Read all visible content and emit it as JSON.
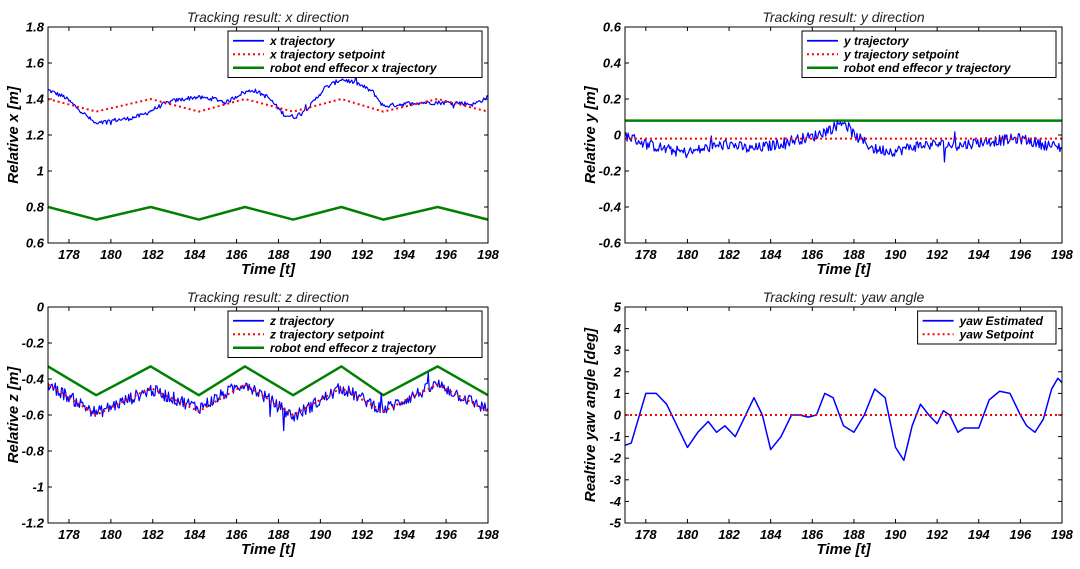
{
  "chart_data": [
    {
      "type": "line",
      "title": "Tracking result: x direction",
      "xlabel": "Time [t]",
      "ylabel": "Relative x [m]",
      "xlim": [
        177,
        198
      ],
      "ylim": [
        0.6,
        1.8
      ],
      "xticks": [
        178,
        180,
        182,
        184,
        186,
        188,
        190,
        192,
        194,
        196,
        198
      ],
      "yticks": [
        0.6,
        0.8,
        1,
        1.2,
        1.4,
        1.6,
        1.8
      ],
      "legend": "top-right",
      "series": [
        {
          "name": "x trajectory",
          "color": "#0000ff",
          "style": "solid",
          "noise": 0.012,
          "x": [
            177,
            177.8,
            178.6,
            179.3,
            180,
            180.8,
            181.5,
            182.5,
            183,
            184,
            185,
            185.5,
            186.2,
            186.8,
            187.5,
            188.3,
            188.8,
            189.5,
            190.2,
            191,
            191.7,
            192.5,
            193,
            193.8,
            194.5,
            195.5,
            196.5,
            197.3,
            198
          ],
          "y": [
            1.45,
            1.41,
            1.33,
            1.26,
            1.28,
            1.29,
            1.31,
            1.37,
            1.39,
            1.41,
            1.4,
            1.38,
            1.43,
            1.45,
            1.41,
            1.31,
            1.3,
            1.36,
            1.46,
            1.51,
            1.49,
            1.44,
            1.36,
            1.37,
            1.38,
            1.38,
            1.38,
            1.37,
            1.41
          ]
        },
        {
          "name": "x trajectory setpoint",
          "color": "#ff0000",
          "style": "dotted",
          "x": [
            177,
            179.3,
            181.9,
            184.2,
            186.4,
            188.7,
            191.0,
            193.0,
            195.6,
            198
          ],
          "y": [
            1.4,
            1.33,
            1.4,
            1.33,
            1.4,
            1.33,
            1.4,
            1.33,
            1.4,
            1.33
          ]
        },
        {
          "name": "robot end effecor x trajectory",
          "color": "#008000",
          "style": "solid",
          "x": [
            177,
            179.3,
            181.9,
            184.2,
            186.4,
            188.7,
            191.0,
            193.0,
            195.6,
            198
          ],
          "y": [
            0.8,
            0.73,
            0.8,
            0.73,
            0.8,
            0.73,
            0.8,
            0.73,
            0.8,
            0.73
          ]
        }
      ]
    },
    {
      "type": "line",
      "title": "Tracking result: y direction",
      "xlabel": "Time [t]",
      "ylabel": "Relative y [m]",
      "xlim": [
        177,
        198
      ],
      "ylim": [
        -0.6,
        0.6
      ],
      "xticks": [
        178,
        180,
        182,
        184,
        186,
        188,
        190,
        192,
        194,
        196,
        198
      ],
      "yticks": [
        -0.6,
        -0.4,
        -0.2,
        0,
        0.2,
        0.4,
        0.6
      ],
      "legend": "top-right",
      "series": [
        {
          "name": "y trajectory",
          "color": "#0000ff",
          "style": "solid",
          "noise": 0.03,
          "x": [
            177,
            178,
            179,
            180,
            181,
            182,
            183,
            184,
            185,
            186,
            187,
            187.5,
            188,
            189,
            190,
            191,
            192,
            193,
            194,
            195,
            196,
            197,
            198
          ],
          "y": [
            0.0,
            -0.05,
            -0.08,
            -0.1,
            -0.07,
            -0.05,
            -0.08,
            -0.06,
            -0.03,
            -0.01,
            0.04,
            0.08,
            0.0,
            -0.08,
            -0.09,
            -0.06,
            -0.05,
            -0.06,
            -0.04,
            -0.03,
            -0.02,
            -0.05,
            -0.07
          ]
        },
        {
          "name": "y trajectory setpoint",
          "color": "#ff0000",
          "style": "dotted",
          "x": [
            177,
            198
          ],
          "y": [
            -0.02,
            -0.02
          ]
        },
        {
          "name": "robot end effecor y trajectory",
          "color": "#008000",
          "style": "solid",
          "x": [
            177,
            198
          ],
          "y": [
            0.08,
            0.08
          ]
        }
      ]
    },
    {
      "type": "line",
      "title": "Tracking result: z direction",
      "xlabel": "Time [t]",
      "ylabel": "Relative z [m]",
      "xlim": [
        177,
        198
      ],
      "ylim": [
        -1.2,
        0
      ],
      "xticks": [
        178,
        180,
        182,
        184,
        186,
        188,
        190,
        192,
        194,
        196,
        198
      ],
      "yticks": [
        -1.2,
        -1,
        -0.8,
        -0.6,
        -0.4,
        -0.2,
        0
      ],
      "legend": "top-right",
      "series": [
        {
          "name": "z trajectory",
          "color": "#0000ff",
          "style": "solid",
          "noise": 0.035,
          "x": [
            177,
            179.3,
            181.9,
            184.2,
            186.4,
            188.7,
            191.0,
            193.0,
            195.6,
            198
          ],
          "y": [
            -0.43,
            -0.59,
            -0.46,
            -0.56,
            -0.42,
            -0.61,
            -0.45,
            -0.57,
            -0.43,
            -0.57
          ]
        },
        {
          "name": "z trajectory setpoint",
          "color": "#ff0000",
          "style": "dotted",
          "x": [
            177,
            179.3,
            181.9,
            184.2,
            186.4,
            188.7,
            191.0,
            193.0,
            195.6,
            198
          ],
          "y": [
            -0.43,
            -0.6,
            -0.45,
            -0.58,
            -0.43,
            -0.6,
            -0.45,
            -0.58,
            -0.43,
            -0.58
          ]
        },
        {
          "name": "robot end effecor z trajectory",
          "color": "#008000",
          "style": "solid",
          "x": [
            177,
            179.3,
            181.9,
            184.2,
            186.4,
            188.7,
            191.0,
            193.0,
            195.6,
            198
          ],
          "y": [
            -0.33,
            -0.49,
            -0.33,
            -0.49,
            -0.33,
            -0.49,
            -0.33,
            -0.49,
            -0.33,
            -0.49
          ]
        }
      ]
    },
    {
      "type": "line",
      "title": "Tracking result: yaw angle",
      "xlabel": "Time [t]",
      "ylabel": "Realtive yaw angle [deg]",
      "xlim": [
        177,
        198
      ],
      "ylim": [
        -5,
        5
      ],
      "xticks": [
        178,
        180,
        182,
        184,
        186,
        188,
        190,
        192,
        194,
        196,
        198
      ],
      "yticks": [
        -5,
        -4,
        -3,
        -2,
        -1,
        0,
        1,
        2,
        3,
        4,
        5
      ],
      "legend": "top-right",
      "series": [
        {
          "name": "yaw Estimated",
          "color": "#0000ff",
          "style": "solid",
          "x": [
            177,
            177.3,
            178,
            178.5,
            179,
            179.5,
            180,
            180.5,
            181,
            181.4,
            181.8,
            182.3,
            182.8,
            183.2,
            183.6,
            184,
            184.5,
            185,
            185.4,
            185.8,
            186.2,
            186.6,
            187,
            187.5,
            188,
            188.5,
            189,
            189.5,
            190,
            190.4,
            190.8,
            191.2,
            191.6,
            192,
            192.3,
            192.6,
            193,
            193.3,
            193.6,
            194,
            194.5,
            195,
            195.5,
            196,
            196.3,
            196.7,
            197.1,
            197.5,
            197.8,
            198
          ],
          "y": [
            -1.4,
            -1.3,
            1.0,
            1.0,
            0.5,
            -0.5,
            -1.5,
            -0.8,
            -0.3,
            -0.8,
            -0.5,
            -1.0,
            0.0,
            0.8,
            0.0,
            -1.6,
            -1.0,
            0.0,
            0.0,
            -0.1,
            0.0,
            1.0,
            0.8,
            -0.5,
            -0.8,
            0.0,
            1.2,
            0.8,
            -1.5,
            -2.1,
            -0.5,
            0.5,
            0.0,
            -0.4,
            0.2,
            0.0,
            -0.8,
            -0.6,
            -0.6,
            -0.6,
            0.7,
            1.1,
            1.0,
            0.0,
            -0.5,
            -0.8,
            -0.2,
            1.2,
            1.7,
            1.5
          ]
        },
        {
          "name": "yaw Setpoint",
          "color": "#ff0000",
          "style": "dotted",
          "x": [
            177,
            198
          ],
          "y": [
            0,
            0
          ]
        }
      ]
    }
  ]
}
